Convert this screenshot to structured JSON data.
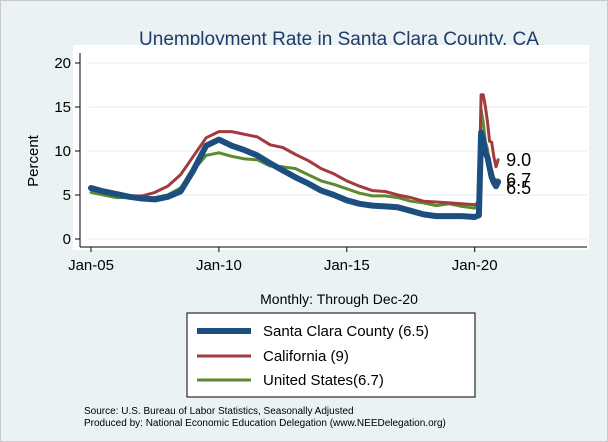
{
  "chart_data": {
    "type": "line",
    "title": "Unemployment Rate in Santa Clara County, CA",
    "ylabel": "Percent",
    "xlabel": "",
    "note": "Monthly: Through Dec-20",
    "x_start": "Jan-05",
    "x_end": "Dec-20",
    "x_axis_min": "Jan-05",
    "x_axis_max": "Jan-24",
    "ylim": [
      0,
      20
    ],
    "yticks": [
      0,
      5,
      10,
      15,
      20
    ],
    "xticks": [
      "Jan-05",
      "Jan-10",
      "Jan-15",
      "Jan-20"
    ],
    "grid": "horizontal",
    "legend_placement": "bottom",
    "series": [
      {
        "name": "Santa Clara County (6.5)",
        "color": "#1c4f80",
        "end_label": "6.5",
        "points": [
          [
            "Jan-05",
            5.8
          ],
          [
            "Jul-05",
            5.4
          ],
          [
            "Jan-06",
            5.1
          ],
          [
            "Jul-06",
            4.8
          ],
          [
            "Jan-07",
            4.6
          ],
          [
            "Jul-07",
            4.5
          ],
          [
            "Jan-08",
            4.8
          ],
          [
            "Jul-08",
            5.4
          ],
          [
            "Jan-09",
            7.8
          ],
          [
            "Jul-09",
            10.6
          ],
          [
            "Jan-10",
            11.3
          ],
          [
            "Jul-10",
            10.6
          ],
          [
            "Jan-11",
            10.1
          ],
          [
            "Jul-11",
            9.5
          ],
          [
            "Jan-12",
            8.6
          ],
          [
            "Jul-12",
            7.8
          ],
          [
            "Jan-13",
            7.0
          ],
          [
            "Jul-13",
            6.3
          ],
          [
            "Jan-14",
            5.5
          ],
          [
            "Jul-14",
            5.0
          ],
          [
            "Jan-15",
            4.4
          ],
          [
            "Jul-15",
            4.0
          ],
          [
            "Jan-16",
            3.8
          ],
          [
            "Jul-16",
            3.7
          ],
          [
            "Jan-17",
            3.6
          ],
          [
            "Jul-17",
            3.2
          ],
          [
            "Jan-18",
            2.8
          ],
          [
            "Jul-18",
            2.6
          ],
          [
            "Jan-19",
            2.6
          ],
          [
            "Jul-19",
            2.6
          ],
          [
            "Jan-20",
            2.5
          ],
          [
            "Mar-20",
            2.7
          ],
          [
            "Apr-20",
            12.1
          ],
          [
            "May-20",
            11.2
          ],
          [
            "Jun-20",
            9.8
          ],
          [
            "Jul-20",
            9.3
          ],
          [
            "Aug-20",
            8.1
          ],
          [
            "Sep-20",
            7.0
          ],
          [
            "Oct-20",
            6.4
          ],
          [
            "Nov-20",
            6.0
          ],
          [
            "Dec-20",
            6.5
          ]
        ]
      },
      {
        "name": "California (9)",
        "color": "#a33a3e",
        "end_label": "9.0",
        "points": [
          [
            "Jan-05",
            5.7
          ],
          [
            "Jul-05",
            5.4
          ],
          [
            "Jan-06",
            5.0
          ],
          [
            "Jul-06",
            4.9
          ],
          [
            "Jan-07",
            4.9
          ],
          [
            "Jul-07",
            5.3
          ],
          [
            "Jan-08",
            6.0
          ],
          [
            "Jul-08",
            7.3
          ],
          [
            "Jan-09",
            9.4
          ],
          [
            "Jul-09",
            11.5
          ],
          [
            "Jan-10",
            12.2
          ],
          [
            "Jul-10",
            12.2
          ],
          [
            "Jan-11",
            11.9
          ],
          [
            "Jul-11",
            11.6
          ],
          [
            "Jan-12",
            10.7
          ],
          [
            "Jul-12",
            10.4
          ],
          [
            "Jan-13",
            9.6
          ],
          [
            "Jul-13",
            8.9
          ],
          [
            "Jan-14",
            8.0
          ],
          [
            "Jul-14",
            7.4
          ],
          [
            "Jan-15",
            6.6
          ],
          [
            "Jul-15",
            6.0
          ],
          [
            "Jan-16",
            5.5
          ],
          [
            "Jul-16",
            5.4
          ],
          [
            "Jan-17",
            5.0
          ],
          [
            "Jul-17",
            4.7
          ],
          [
            "Jan-18",
            4.3
          ],
          [
            "Jul-18",
            4.2
          ],
          [
            "Jan-19",
            4.1
          ],
          [
            "Jul-19",
            4.0
          ],
          [
            "Jan-20",
            3.9
          ],
          [
            "Mar-20",
            4.2
          ],
          [
            "Apr-20",
            16.4
          ],
          [
            "May-20",
            16.4
          ],
          [
            "Jun-20",
            15.1
          ],
          [
            "Jul-20",
            13.3
          ],
          [
            "Aug-20",
            11.1
          ],
          [
            "Sep-20",
            11.0
          ],
          [
            "Oct-20",
            9.3
          ],
          [
            "Nov-20",
            8.2
          ],
          [
            "Dec-20",
            9.0
          ]
        ]
      },
      {
        "name": "United States(6.7)",
        "color": "#5d8a2e",
        "end_label": "6.7",
        "points": [
          [
            "Jan-05",
            5.3
          ],
          [
            "Jul-05",
            5.0
          ],
          [
            "Jan-06",
            4.7
          ],
          [
            "Jul-06",
            4.7
          ],
          [
            "Jan-07",
            4.6
          ],
          [
            "Jul-07",
            4.7
          ],
          [
            "Jan-08",
            5.0
          ],
          [
            "Jul-08",
            5.8
          ],
          [
            "Jan-09",
            7.8
          ],
          [
            "Jul-09",
            9.5
          ],
          [
            "Jan-10",
            9.8
          ],
          [
            "Jul-10",
            9.4
          ],
          [
            "Jan-11",
            9.1
          ],
          [
            "Jul-11",
            9.0
          ],
          [
            "Jan-12",
            8.3
          ],
          [
            "Jul-12",
            8.2
          ],
          [
            "Jan-13",
            8.0
          ],
          [
            "Jul-13",
            7.3
          ],
          [
            "Jan-14",
            6.6
          ],
          [
            "Jul-14",
            6.2
          ],
          [
            "Jan-15",
            5.7
          ],
          [
            "Jul-15",
            5.2
          ],
          [
            "Jan-16",
            4.9
          ],
          [
            "Jul-16",
            4.9
          ],
          [
            "Jan-17",
            4.7
          ],
          [
            "Jul-17",
            4.3
          ],
          [
            "Jan-18",
            4.1
          ],
          [
            "Jul-18",
            3.8
          ],
          [
            "Jan-19",
            4.0
          ],
          [
            "Jul-19",
            3.7
          ],
          [
            "Jan-20",
            3.5
          ],
          [
            "Mar-20",
            4.4
          ],
          [
            "Apr-20",
            14.7
          ],
          [
            "May-20",
            13.3
          ],
          [
            "Jun-20",
            11.1
          ],
          [
            "Jul-20",
            10.2
          ],
          [
            "Aug-20",
            8.4
          ],
          [
            "Sep-20",
            7.8
          ],
          [
            "Oct-20",
            6.9
          ],
          [
            "Nov-20",
            6.7
          ],
          [
            "Dec-20",
            6.7
          ]
        ]
      }
    ]
  },
  "source": {
    "line1": "Source: U.S. Bureau of Labor Statistics, Seasonally Adjusted",
    "line2": "Produced by: National Economic Education Delegation (www.NEEDelegation.org)"
  }
}
